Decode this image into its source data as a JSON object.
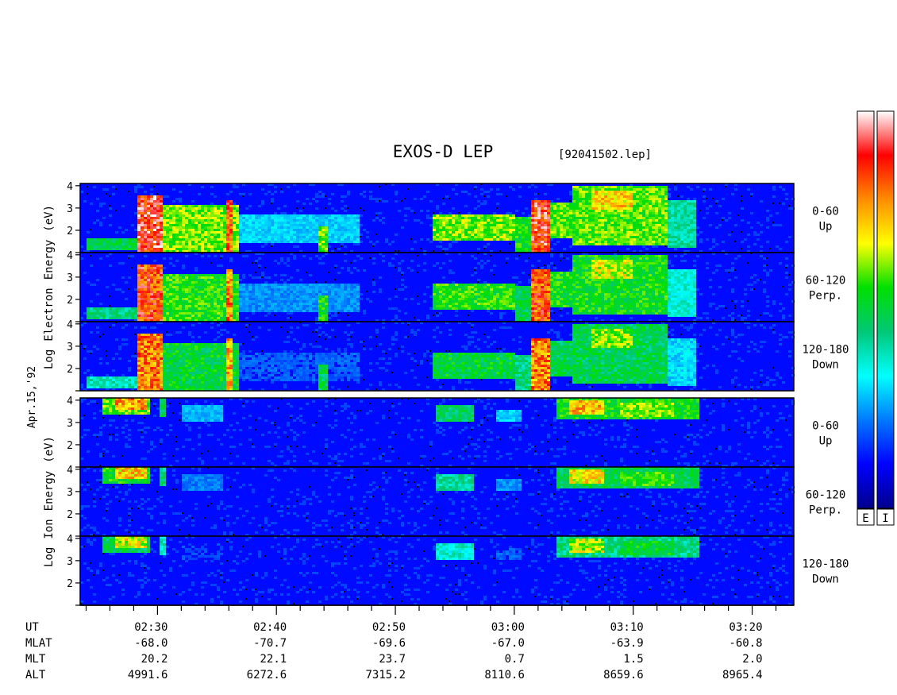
{
  "chart_data": {
    "type": "heatmap",
    "title": "EXOS-D LEP",
    "file_label": "[92041502.lep]",
    "date_label": "Apr.15,'92",
    "colorbar_labels": [
      "E",
      "I"
    ],
    "colorbar_colors": [
      "#00008c",
      "#0000ff",
      "#0078ff",
      "#00ffff",
      "#00c878",
      "#00e000",
      "#ffff00",
      "#ff8c00",
      "#ff0000",
      "#ffffff"
    ],
    "time_axis": {
      "start_minutes": 143.5,
      "end_minutes": 203.5,
      "major_minutes": [
        150,
        160,
        170,
        180,
        190,
        200
      ],
      "minor_step_minutes": 2
    },
    "energy_axis": {
      "min": 1,
      "max": 4.1,
      "ticks": [
        1,
        2,
        3,
        4
      ],
      "scale": "log eV"
    },
    "groups": [
      {
        "species": "Electron",
        "ylabel_words": [
          "Log",
          "Electron",
          "Energy",
          "(eV)"
        ],
        "panels": [
          {
            "pitch_range": "0-60",
            "direction": "Up",
            "tick_labels": [
              "2",
              "3",
              "4"
            ]
          },
          {
            "pitch_range": "60-120",
            "direction": "Perp.",
            "tick_labels": [
              "2",
              "3",
              "4"
            ]
          },
          {
            "pitch_range": "120-180",
            "direction": "Down",
            "tick_labels": [
              "2",
              "3",
              "4"
            ]
          }
        ],
        "features": [
          {
            "t0": 144.0,
            "t1": 148.4,
            "e0": 1.1,
            "e1": 1.6,
            "level": 0.5
          },
          {
            "t0": 148.4,
            "t1": 150.5,
            "e0": 1.0,
            "e1": 3.6,
            "level": 0.92
          },
          {
            "t0": 150.5,
            "t1": 156.8,
            "e0": 1.0,
            "e1": 3.1,
            "level": 0.62
          },
          {
            "t0": 155.7,
            "t1": 156.2,
            "e0": 1.0,
            "e1": 3.3,
            "level": 0.85
          },
          {
            "t0": 156.8,
            "t1": 167.0,
            "e0": 1.4,
            "e1": 2.7,
            "level": 0.3
          },
          {
            "t0": 163.4,
            "t1": 164.4,
            "e0": 1.0,
            "e1": 2.2,
            "level": 0.6
          },
          {
            "t0": 173.0,
            "t1": 180.0,
            "e0": 1.5,
            "e1": 2.7,
            "level": 0.62
          },
          {
            "t0": 180.0,
            "t1": 181.5,
            "e0": 1.0,
            "e1": 2.6,
            "level": 0.55
          },
          {
            "t0": 181.5,
            "t1": 183.0,
            "e0": 1.0,
            "e1": 3.3,
            "level": 0.9
          },
          {
            "t0": 183.0,
            "t1": 185.0,
            "e0": 1.6,
            "e1": 3.2,
            "level": 0.6
          },
          {
            "t0": 185.0,
            "t1": 193.0,
            "e0": 1.3,
            "e1": 4.0,
            "level": 0.6
          },
          {
            "t0": 186.5,
            "t1": 190.0,
            "e0": 2.9,
            "e1": 3.8,
            "level": 0.72
          },
          {
            "t0": 193.0,
            "t1": 195.2,
            "e0": 1.2,
            "e1": 3.3,
            "level": 0.42
          }
        ]
      },
      {
        "species": "Ion",
        "ylabel_words": [
          "Log",
          "Ion",
          "Energy",
          "(eV)"
        ],
        "panels": [
          {
            "pitch_range": "0-60",
            "direction": "Up",
            "tick_labels": [
              "2",
              "3",
              "4"
            ]
          },
          {
            "pitch_range": "60-120",
            "direction": "Perp.",
            "tick_labels": [
              "2",
              "3",
              "4"
            ]
          },
          {
            "pitch_range": "120-180",
            "direction": "Down",
            "tick_labels": [
              "2",
              "3",
              "4"
            ]
          }
        ],
        "features": [
          {
            "t0": 145.5,
            "t1": 149.5,
            "e0": 3.3,
            "e1": 4.1,
            "level": 0.6
          },
          {
            "t0": 146.5,
            "t1": 149.0,
            "e0": 3.6,
            "e1": 4.1,
            "level": 0.78
          },
          {
            "t0": 150.2,
            "t1": 150.6,
            "e0": 3.2,
            "e1": 4.1,
            "level": 0.5
          },
          {
            "t0": 152.0,
            "t1": 155.5,
            "e0": 3.0,
            "e1": 3.8,
            "level": 0.28
          },
          {
            "t0": 173.5,
            "t1": 176.5,
            "e0": 3.0,
            "e1": 3.8,
            "level": 0.48
          },
          {
            "t0": 178.5,
            "t1": 180.5,
            "e0": 3.0,
            "e1": 3.6,
            "level": 0.3
          },
          {
            "t0": 183.5,
            "t1": 195.5,
            "e0": 3.1,
            "e1": 4.1,
            "level": 0.55
          },
          {
            "t0": 184.5,
            "t1": 187.5,
            "e0": 3.4,
            "e1": 4.0,
            "level": 0.75
          },
          {
            "t0": 189.0,
            "t1": 193.5,
            "e0": 3.2,
            "e1": 3.9,
            "level": 0.62
          }
        ]
      }
    ],
    "orbit_table": {
      "row_labels": [
        "UT",
        "MLAT",
        "MLT",
        "ALT"
      ],
      "columns": [
        {
          "minutes": 150,
          "UT": "02:30",
          "MLAT": "-68.0",
          "MLT": "20.2",
          "ALT": "4991.6"
        },
        {
          "minutes": 160,
          "UT": "02:40",
          "MLAT": "-70.7",
          "MLT": "22.1",
          "ALT": "6272.6"
        },
        {
          "minutes": 170,
          "UT": "02:50",
          "MLAT": "-69.6",
          "MLT": "23.7",
          "ALT": "7315.2"
        },
        {
          "minutes": 180,
          "UT": "03:00",
          "MLAT": "-67.0",
          "MLT": "0.7",
          "ALT": "8110.6"
        },
        {
          "minutes": 190,
          "UT": "03:10",
          "MLAT": "-63.9",
          "MLT": "1.5",
          "ALT": "8659.6"
        },
        {
          "minutes": 200,
          "UT": "03:20",
          "MLAT": "-60.8",
          "MLT": "2.0",
          "ALT": "8965.4"
        }
      ]
    }
  }
}
